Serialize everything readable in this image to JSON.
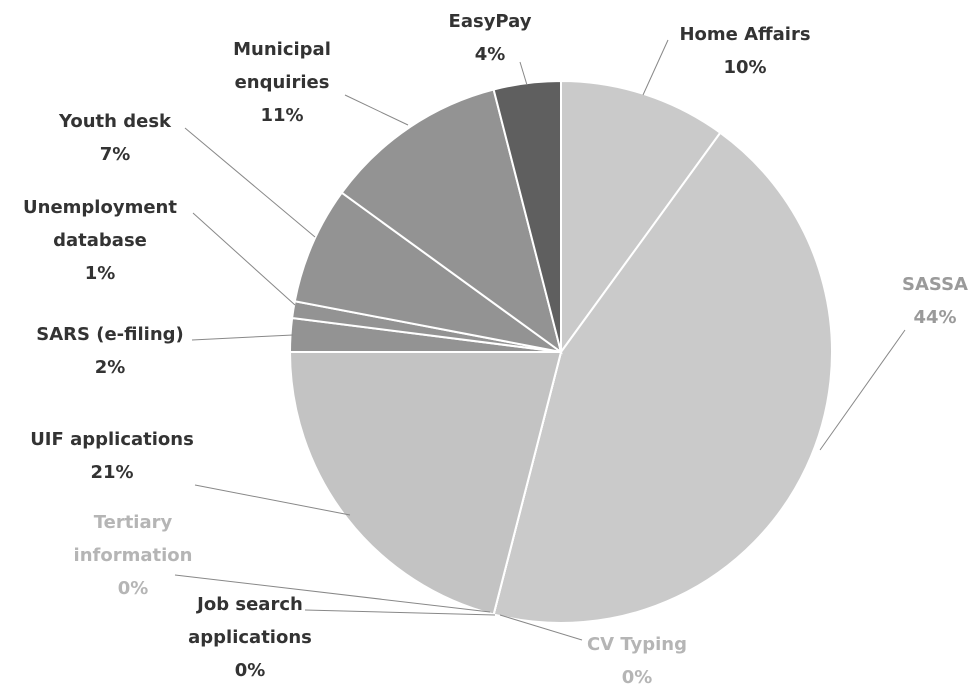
{
  "chart_data": {
    "type": "pie",
    "categories": [
      "Home Affairs",
      "SASSA",
      "CV Typing",
      "Job search applications",
      "Tertiary information",
      "UIF applications",
      "SARS (e-filing)",
      "Unemployment database",
      "Youth desk",
      "Municipal enquiries",
      "EasyPay"
    ],
    "values": [
      10,
      44,
      0,
      0,
      0,
      21,
      2,
      1,
      7,
      11,
      4
    ],
    "value_labels": [
      "10%",
      "44%",
      "0%",
      "0%",
      "0%",
      "21%",
      "2%",
      "1%",
      "7%",
      "11%",
      "4%"
    ],
    "colors": [
      "#cacaca",
      "#cacaca",
      "#cacaca",
      "#cacaca",
      "#cacaca",
      "#c3c3c3",
      "#939393",
      "#939393",
      "#939393",
      "#939393",
      "#5f5f5f"
    ],
    "label_colors": [
      "#333333",
      "#9a9a9a",
      "#b5b5b5",
      "#333333",
      "#b5b5b5",
      "#333333",
      "#333333",
      "#333333",
      "#333333",
      "#333333",
      "#333333"
    ]
  }
}
